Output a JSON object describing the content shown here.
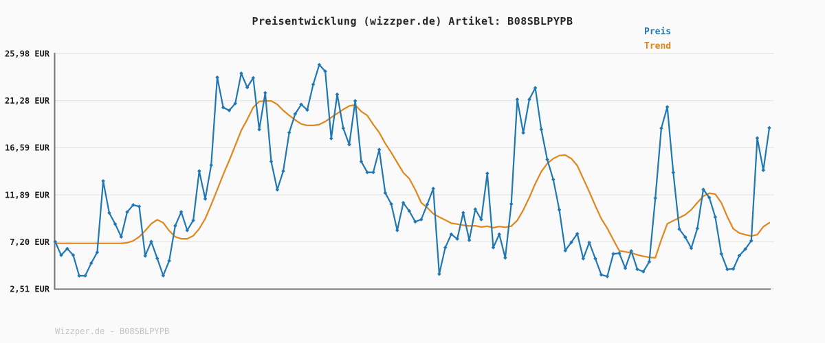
{
  "title": "Preisentwicklung (wizzper.de) Artikel: B08SBLPYPB",
  "footer": {
    "text": "Wizzper.de - B08SBLPYPB"
  },
  "colors": {
    "preis": "#1f77b4",
    "trend": "#e0861a",
    "background": "#fafafa",
    "grid": "#e4e4e4",
    "spine": "#757575",
    "title_text": "#262626",
    "tick_text": "#1a1a1a",
    "footer_text": "#c3c3c3"
  },
  "chart_data": {
    "type": "line",
    "title": "Preisentwicklung (wizzper.de) Artikel: B08SBLPYPB",
    "xlabel": "",
    "ylabel": "",
    "x_axis_labels_visible": false,
    "ylim": [
      2.51,
      25.98
    ],
    "grid": "horizontal-only",
    "legend_position": "top-right",
    "currency": "EUR",
    "yticks": [
      {
        "value": 25.98,
        "label": "25,98 EUR"
      },
      {
        "value": 21.28,
        "label": "21,28 EUR"
      },
      {
        "value": 16.59,
        "label": "16,59 EUR"
      },
      {
        "value": 11.89,
        "label": "11,89 EUR"
      },
      {
        "value": 7.2,
        "label": "7,20 EUR"
      },
      {
        "value": 2.51,
        "label": "2,51 EUR"
      }
    ],
    "series": [
      {
        "name": "Preis",
        "color": "#1f77b4",
        "marker": "diamond",
        "values": [
          7.2,
          5.87,
          6.51,
          5.87,
          3.81,
          3.81,
          5.07,
          6.15,
          13.26,
          10.08,
          8.96,
          7.7,
          10.17,
          10.88,
          10.72,
          5.8,
          7.22,
          5.55,
          3.83,
          5.3,
          8.8,
          10.18,
          8.35,
          9.33,
          14.25,
          11.48,
          14.85,
          23.6,
          20.6,
          20.3,
          21.0,
          24.0,
          22.6,
          23.55,
          18.4,
          22.05,
          15.2,
          12.4,
          14.25,
          18.1,
          19.96,
          20.9,
          20.35,
          22.9,
          24.86,
          24.2,
          17.5,
          21.9,
          18.52,
          16.9,
          21.25,
          15.2,
          14.13,
          14.13,
          16.4,
          12.07,
          10.97,
          8.34,
          11.09,
          10.27,
          9.2,
          9.42,
          10.93,
          12.51,
          3.99,
          6.63,
          7.95,
          7.49,
          10.1,
          7.36,
          10.45,
          9.42,
          14.02,
          6.63,
          7.95,
          5.6,
          10.97,
          21.4,
          18.07,
          21.4,
          22.55,
          18.41,
          15.4,
          13.4,
          10.4,
          6.33,
          7.15,
          8.0,
          5.53,
          7.13,
          5.53,
          3.91,
          3.75,
          5.99,
          6.06,
          4.57,
          6.28,
          4.46,
          4.23,
          5.2,
          11.55,
          18.52,
          20.65,
          14.11,
          8.46,
          7.66,
          6.56,
          8.53,
          12.42,
          11.61,
          9.67,
          5.99,
          4.45,
          4.5,
          5.83,
          6.47,
          7.31,
          17.54,
          14.34,
          18.56
        ]
      },
      {
        "name": "Trend",
        "color": "#e0861a",
        "marker": "none",
        "values": [
          7.05,
          7.05,
          7.05,
          7.05,
          7.05,
          7.05,
          7.05,
          7.05,
          7.05,
          7.05,
          7.05,
          7.05,
          7.1,
          7.3,
          7.7,
          8.3,
          9.0,
          9.4,
          9.1,
          8.3,
          7.7,
          7.5,
          7.5,
          7.8,
          8.5,
          9.5,
          10.9,
          12.4,
          13.9,
          15.3,
          16.8,
          18.3,
          19.4,
          20.6,
          21.2,
          21.25,
          21.25,
          20.9,
          20.3,
          19.8,
          19.35,
          18.95,
          18.8,
          18.8,
          18.9,
          19.2,
          19.6,
          20.0,
          20.4,
          20.75,
          20.85,
          20.2,
          19.8,
          18.9,
          18.1,
          17.0,
          16.1,
          15.1,
          14.1,
          13.5,
          12.4,
          11.1,
          10.6,
          10.0,
          9.67,
          9.37,
          9.05,
          8.96,
          8.85,
          8.78,
          8.8,
          8.67,
          8.76,
          8.6,
          8.72,
          8.65,
          8.76,
          9.33,
          10.36,
          11.62,
          13.0,
          14.2,
          15.0,
          15.5,
          15.8,
          15.85,
          15.5,
          14.8,
          13.5,
          12.2,
          10.8,
          9.5,
          8.55,
          7.4,
          6.3,
          6.2,
          6.1,
          5.9,
          5.75,
          5.65,
          5.6,
          7.4,
          9.0,
          9.3,
          9.6,
          9.9,
          10.4,
          11.1,
          11.75,
          12.05,
          11.95,
          11.1,
          9.7,
          8.5,
          8.07,
          7.9,
          7.78,
          7.9,
          8.7,
          9.1
        ]
      }
    ]
  }
}
